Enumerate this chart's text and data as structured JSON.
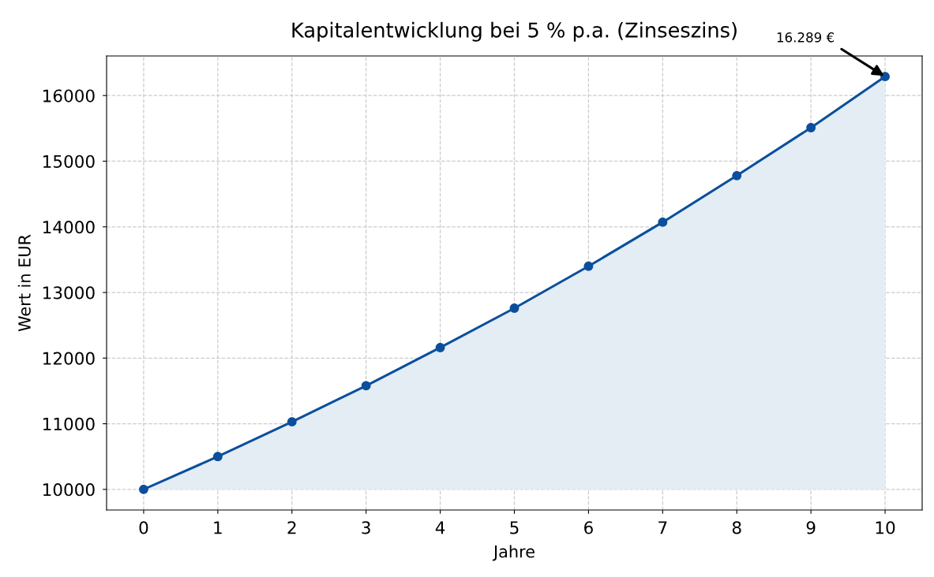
{
  "chart_data": {
    "type": "area",
    "title": "Kapitalentwicklung bei 5 % p.a. (Zinseszins)",
    "xlabel": "Jahre",
    "ylabel": "Wert in EUR",
    "x": [
      0,
      1,
      2,
      3,
      4,
      5,
      6,
      7,
      8,
      9,
      10
    ],
    "series": [
      {
        "color": "#0b4f9c",
        "values": [
          10000,
          10500,
          11030,
          11580,
          12160,
          12760,
          13400,
          14070,
          14780,
          15510,
          16289
        ]
      }
    ],
    "xlim": [
      -0.5,
      10.5
    ],
    "xticks": [
      0,
      1,
      2,
      3,
      4,
      5,
      6,
      7,
      8,
      9,
      10
    ],
    "ylim": [
      9686,
      16603
    ],
    "yticks": [
      10000,
      11000,
      12000,
      13000,
      14000,
      15000,
      16000
    ],
    "grid": true,
    "marker": "circle",
    "line_style": "solid",
    "annotations": [
      {
        "text": "16.289 €",
        "x": 10,
        "y": 16289
      }
    ]
  }
}
